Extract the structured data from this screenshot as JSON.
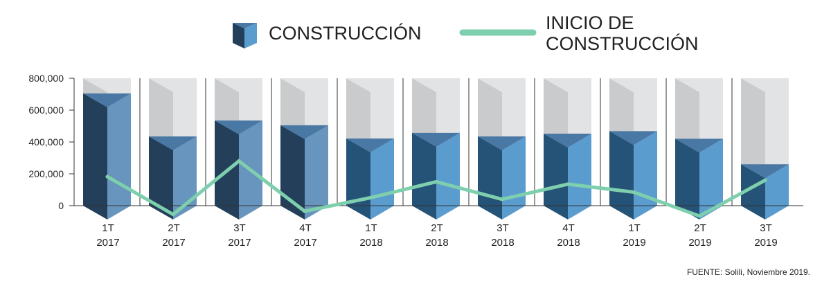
{
  "chart_data": {
    "type": "bar",
    "categories": [
      {
        "q": "1T",
        "y": "2017"
      },
      {
        "q": "2T",
        "y": "2017"
      },
      {
        "q": "3T",
        "y": "2017"
      },
      {
        "q": "4T",
        "y": "2017"
      },
      {
        "q": "1T",
        "y": "2018"
      },
      {
        "q": "2T",
        "y": "2018"
      },
      {
        "q": "3T",
        "y": "2018"
      },
      {
        "q": "4T",
        "y": "2018"
      },
      {
        "q": "1T",
        "y": "2019"
      },
      {
        "q": "2T",
        "y": "2019"
      },
      {
        "q": "3T",
        "y": "2019"
      }
    ],
    "series": [
      {
        "name": "CONSTRUCCIÓN",
        "type": "bar",
        "values": [
          705000,
          435000,
          535000,
          505000,
          422000,
          457000,
          435000,
          452000,
          468000,
          420000,
          260000
        ]
      },
      {
        "name": "INICIO DE CONSTRUCCIÓN",
        "type": "line",
        "values": [
          182000,
          -55000,
          280000,
          -35000,
          50000,
          150000,
          40000,
          135000,
          85000,
          -65000,
          160000
        ]
      }
    ],
    "ylim": [
      0,
      800000
    ],
    "yticks": [
      "0",
      "200,000",
      "400,000",
      "600,000",
      "800,000"
    ],
    "ytick_values": [
      0,
      200000,
      400000,
      600000,
      800000
    ],
    "legend": {
      "position": "top",
      "items": [
        {
          "label_lines": [
            "CONSTRUCCIÓN"
          ],
          "symbol": "bar"
        },
        {
          "label_lines": [
            "INICIO DE",
            "CONSTRUCCIÓN"
          ],
          "symbol": "line"
        }
      ]
    },
    "source": "FUENTE: Solili, Noviembre 2019.",
    "colors": {
      "bar_dark_old": "#243f5a",
      "bar_light_old": "#6895bd",
      "bar_dark_new": "#255277",
      "bar_light_new": "#5b9ccf",
      "bar_top": "#4a78a4",
      "bg_dark": "#cacbcd",
      "bg_light": "#e2e3e4",
      "line": "#7ecfae",
      "axis": "#333333"
    }
  }
}
